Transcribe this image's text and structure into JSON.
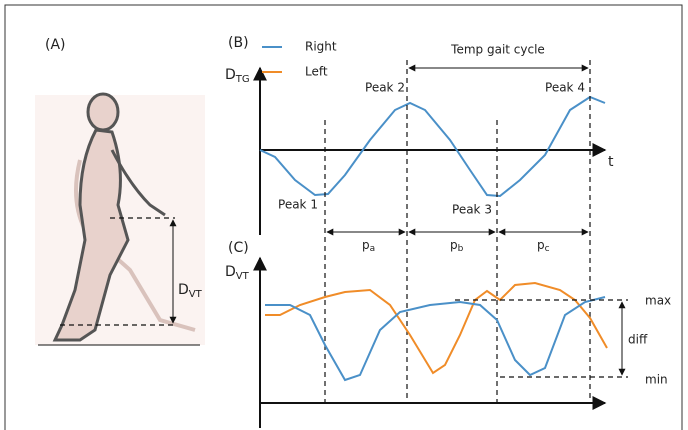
{
  "panel_a": {
    "label": "(A)",
    "measure": {
      "main": "D",
      "sub": "VT"
    }
  },
  "panel_b": {
    "label": "(B)",
    "axis_y": {
      "main": "D",
      "sub": "TG"
    },
    "axis_x": "t",
    "legend": [
      "Right",
      "Left"
    ],
    "cycle_label": "Temp gait cycle",
    "peaks": [
      "Peak 1",
      "Peak 2",
      "Peak 3",
      "Peak 4"
    ],
    "intervals": [
      {
        "main": "p",
        "sub": "a"
      },
      {
        "main": "p",
        "sub": "b"
      },
      {
        "main": "p",
        "sub": "c"
      }
    ]
  },
  "panel_c": {
    "label": "(C)",
    "axis_y": {
      "main": "D",
      "sub": "VT"
    },
    "max": "max",
    "diff": "diff",
    "min": "min"
  }
}
